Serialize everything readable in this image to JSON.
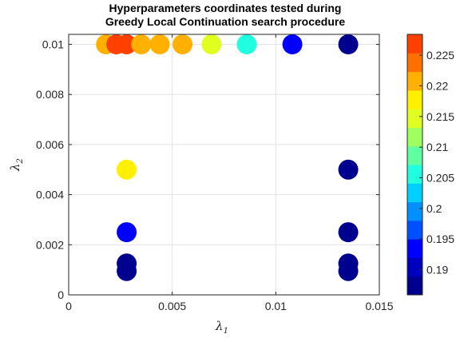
{
  "chart_data": {
    "type": "scatter",
    "title": [
      "Hyperparameters coordinates tested during",
      "Greedy Local Continuation search procedure"
    ],
    "xlabel": {
      "symbol": "λ",
      "sub": "1"
    },
    "ylabel": {
      "symbol": "λ",
      "sub": "2"
    },
    "xlim": [
      0,
      0.015
    ],
    "ylim": [
      0,
      0.0104
    ],
    "xticks": [
      0,
      0.005,
      0.01,
      0.015
    ],
    "xtick_labels": [
      "0",
      "0.005",
      "0.01",
      "0.015"
    ],
    "yticks": [
      0,
      0.002,
      0.004,
      0.006,
      0.008,
      0.01
    ],
    "ytick_labels": [
      "0",
      "0.002",
      "0.004",
      "0.006",
      "0.008",
      "0.01"
    ],
    "grid": true,
    "colorbar": {
      "min": 0.1859,
      "max": 0.2284,
      "ticks": [
        0.19,
        0.195,
        0.2,
        0.205,
        0.21,
        0.215,
        0.22,
        0.225
      ],
      "tick_labels": [
        "0.19",
        "0.195",
        "0.2",
        "0.205",
        "0.21",
        "0.215",
        "0.22",
        "0.225"
      ],
      "colors": [
        "#00008f",
        "#0000bf",
        "#0000ff",
        "#0050ff",
        "#0090ff",
        "#00d0ff",
        "#20ffdf",
        "#60ff9f",
        "#a0ff60",
        "#e0ff20",
        "#ffef00",
        "#ffb000",
        "#ff7000",
        "#ff4000"
      ]
    },
    "points": [
      {
        "x": 0.0018,
        "y": 0.01,
        "v": 0.2205
      },
      {
        "x": 0.0023,
        "y": 0.01,
        "v": 0.2265
      },
      {
        "x": 0.0028,
        "y": 0.01,
        "v": 0.2275
      },
      {
        "x": 0.0035,
        "y": 0.01,
        "v": 0.221
      },
      {
        "x": 0.0044,
        "y": 0.01,
        "v": 0.2205
      },
      {
        "x": 0.0055,
        "y": 0.01,
        "v": 0.2205
      },
      {
        "x": 0.0069,
        "y": 0.01,
        "v": 0.214
      },
      {
        "x": 0.0086,
        "y": 0.01,
        "v": 0.2065
      },
      {
        "x": 0.0108,
        "y": 0.01,
        "v": 0.192
      },
      {
        "x": 0.0135,
        "y": 0.01,
        "v": 0.188
      },
      {
        "x": 0.0028,
        "y": 0.005,
        "v": 0.2185
      },
      {
        "x": 0.0028,
        "y": 0.0025,
        "v": 0.1935
      },
      {
        "x": 0.0028,
        "y": 0.00125,
        "v": 0.187
      },
      {
        "x": 0.0028,
        "y": 0.00095,
        "v": 0.187
      },
      {
        "x": 0.0135,
        "y": 0.005,
        "v": 0.1875
      },
      {
        "x": 0.0135,
        "y": 0.0025,
        "v": 0.1875
      },
      {
        "x": 0.0135,
        "y": 0.00125,
        "v": 0.187
      },
      {
        "x": 0.0135,
        "y": 0.00095,
        "v": 0.187
      }
    ]
  }
}
